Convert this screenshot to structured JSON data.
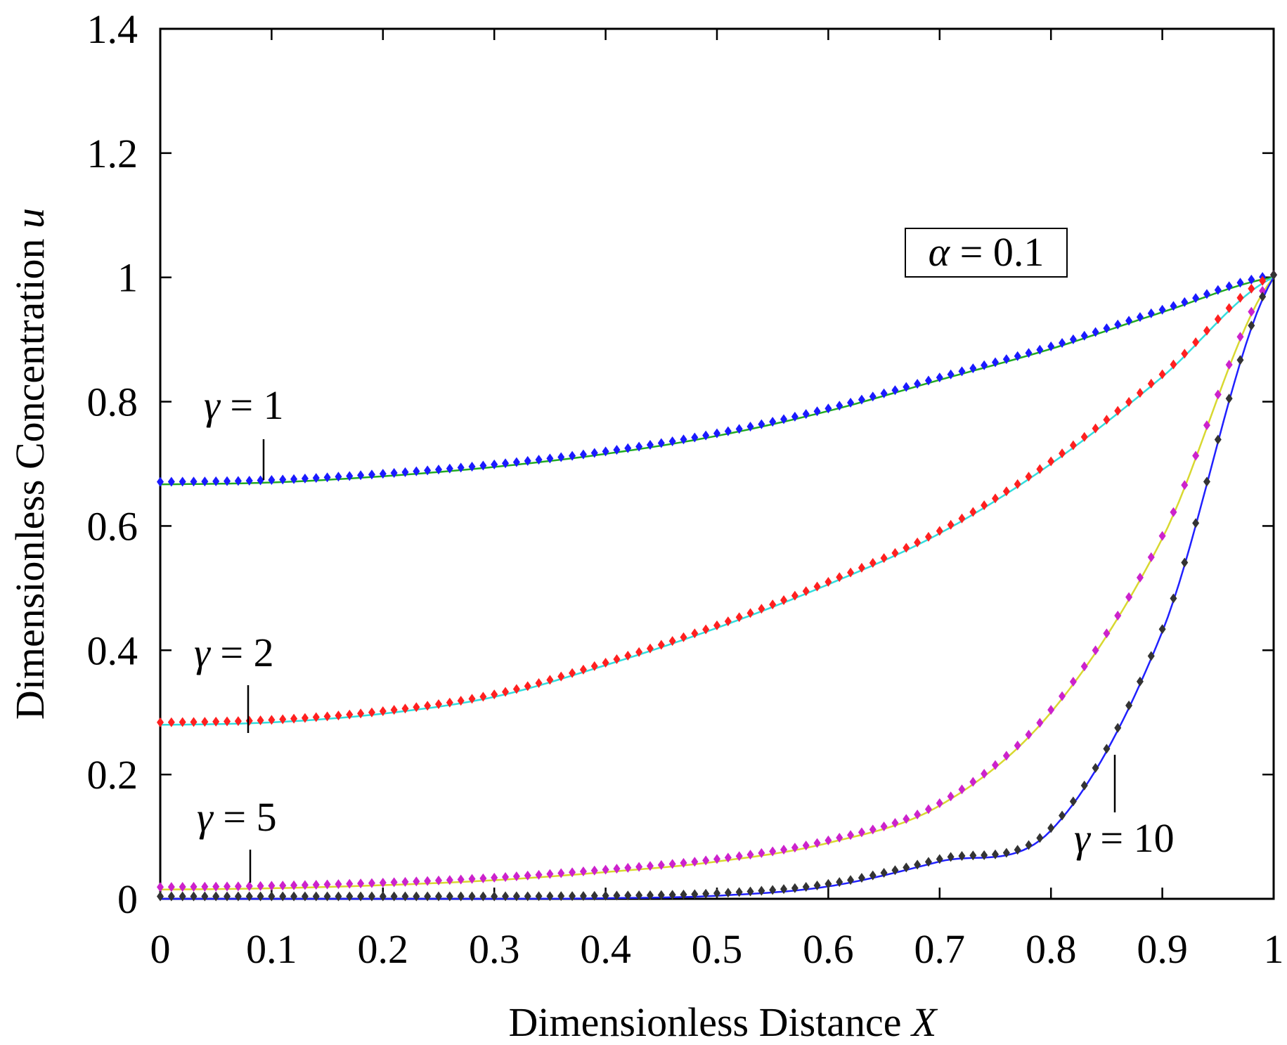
{
  "chart_data": {
    "type": "line",
    "title": "",
    "xlabel": "Dimensionless Distance",
    "xlabel_var": "X",
    "ylabel": "Dimensionless Concentration",
    "ylabel_var": "u",
    "xlim": [
      0,
      1
    ],
    "ylim": [
      0,
      1.4
    ],
    "xticks": [
      "0",
      "0.1",
      "0.2",
      "0.3",
      "0.4",
      "0.5",
      "0.6",
      "0.7",
      "0.8",
      "0.9",
      "1"
    ],
    "yticks": [
      "0",
      "0.2",
      "0.4",
      "0.6",
      "0.8",
      "1",
      "1.2",
      "1.4"
    ],
    "grid": false,
    "box_annotation": "α = 0.1",
    "x": [
      0,
      0.1,
      0.2,
      0.3,
      0.4,
      0.5,
      0.6,
      0.7,
      0.8,
      0.9,
      1.0
    ],
    "series": [
      {
        "label": "γ = 1",
        "line_color": "#22aa22",
        "marker_color": "#1a1aff",
        "values": [
          0.667,
          0.67,
          0.68,
          0.695,
          0.716,
          0.745,
          0.785,
          0.835,
          0.885,
          0.944,
          1.0
        ]
      },
      {
        "label": "γ = 2",
        "line_color": "#33dddd",
        "marker_color": "#ff2020",
        "values": [
          0.28,
          0.284,
          0.298,
          0.325,
          0.376,
          0.436,
          0.506,
          0.588,
          0.7,
          0.84,
          1.0
        ]
      },
      {
        "label": "γ = 5",
        "line_color": "#d8d830",
        "marker_color": "#cc22cc",
        "values": [
          0.015,
          0.017,
          0.022,
          0.03,
          0.043,
          0.06,
          0.09,
          0.15,
          0.3,
          0.58,
          1.0
        ]
      },
      {
        "label": "γ = 10",
        "line_color": "#2020ff",
        "marker_color": "#333333",
        "values": [
          0.0,
          0.0,
          0.0,
          0.0,
          0.001,
          0.005,
          0.02,
          0.06,
          0.11,
          0.43,
          1.0
        ]
      }
    ]
  }
}
